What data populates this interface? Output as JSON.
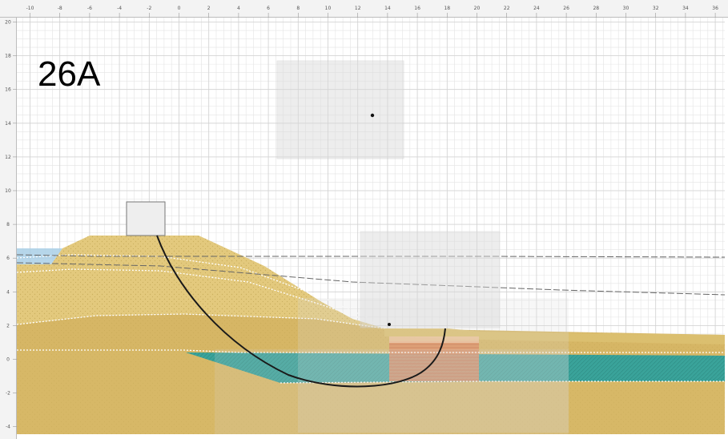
{
  "case_label": "26A",
  "rulers": {
    "x_labels": [
      "-10",
      "-8",
      "-6",
      "-4",
      "-2",
      "0",
      "2",
      "4",
      "6",
      "8",
      "10",
      "12",
      "14",
      "16",
      "18",
      "20",
      "22",
      "24",
      "26",
      "28",
      "30",
      "32",
      "34",
      "36"
    ],
    "y_labels": [
      "20",
      "18",
      "16",
      "14",
      "12",
      "10",
      "8",
      "6",
      "4",
      "2",
      "0",
      "-2",
      "-4"
    ]
  },
  "colors": {
    "grid_minor": "#e4e4e4",
    "grid_major": "#d2d2d2",
    "water": "#a9cfe6",
    "fill_sand": "#dcc06e",
    "fill_sand_light": "#e3c97d",
    "foundation_soil": "#d7b867",
    "clay_teal": "#3aa39a",
    "excavation": "#e08a5b",
    "slip_surface": "#1a1a1a",
    "search_box": "#d9d9d9",
    "phreatic_line": "#666666"
  },
  "icons": {
    "grid_center": "grid-center-point-icon",
    "entry_point": "entry-point-icon"
  }
}
